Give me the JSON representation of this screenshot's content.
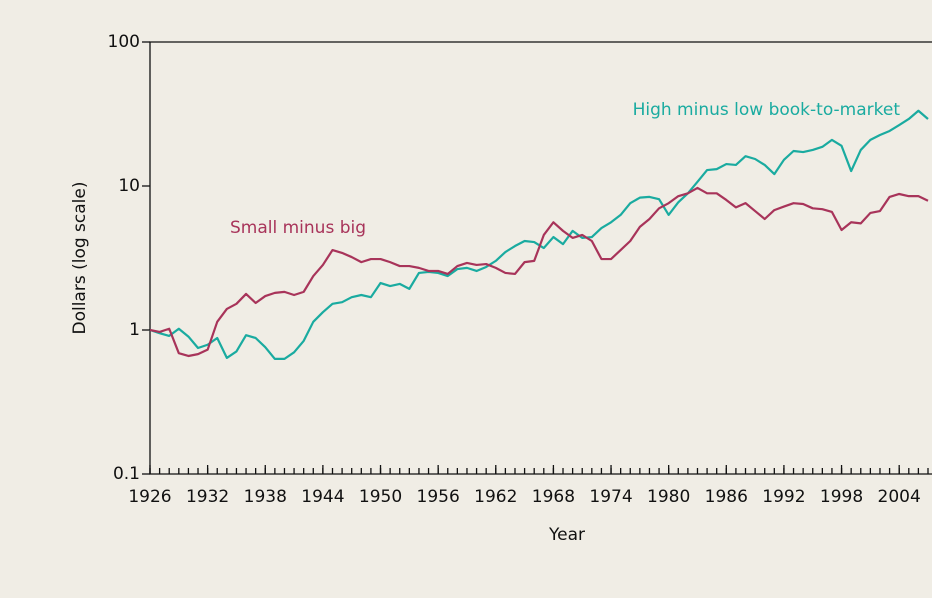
{
  "chart_data": {
    "type": "line",
    "xlabel": "Year",
    "ylabel": "Dollars (log scale)",
    "x": [
      1926,
      1927,
      1928,
      1929,
      1930,
      1931,
      1932,
      1933,
      1934,
      1935,
      1936,
      1937,
      1938,
      1939,
      1940,
      1941,
      1942,
      1943,
      1944,
      1945,
      1946,
      1947,
      1948,
      1949,
      1950,
      1951,
      1952,
      1953,
      1954,
      1955,
      1956,
      1957,
      1958,
      1959,
      1960,
      1961,
      1962,
      1963,
      1964,
      1965,
      1966,
      1967,
      1968,
      1969,
      1970,
      1971,
      1972,
      1973,
      1974,
      1975,
      1976,
      1977,
      1978,
      1979,
      1980,
      1981,
      1982,
      1983,
      1984,
      1985,
      1986,
      1987,
      1988,
      1989,
      1990,
      1991,
      1992,
      1993,
      1994,
      1995,
      1996,
      1997,
      1998,
      1999,
      2000,
      2001,
      2002,
      2003,
      2004,
      2005,
      2006,
      2007
    ],
    "series": [
      {
        "name": "High minus low book-to-market",
        "color": "#1aaba0",
        "values": [
          1.0,
          0.95,
          0.91,
          1.02,
          0.9,
          0.75,
          0.79,
          0.88,
          0.64,
          0.71,
          0.92,
          0.88,
          0.76,
          0.63,
          0.63,
          0.7,
          0.84,
          1.14,
          1.33,
          1.52,
          1.56,
          1.69,
          1.75,
          1.69,
          2.12,
          2.02,
          2.09,
          1.93,
          2.49,
          2.53,
          2.49,
          2.37,
          2.65,
          2.7,
          2.57,
          2.74,
          3.02,
          3.48,
          3.83,
          4.15,
          4.08,
          3.71,
          4.42,
          3.95,
          4.88,
          4.36,
          4.42,
          5.1,
          5.6,
          6.3,
          7.6,
          8.3,
          8.4,
          8.1,
          6.3,
          7.7,
          8.9,
          10.7,
          12.9,
          13.1,
          14.2,
          14.0,
          16.1,
          15.4,
          14.0,
          12.1,
          15.2,
          17.5,
          17.2,
          17.8,
          18.7,
          20.9,
          19.0,
          12.7,
          17.8,
          20.9,
          22.6,
          24.1,
          26.5,
          29.2,
          33.3,
          29.2
        ]
      },
      {
        "name": "Small minus big",
        "color": "#a8345a",
        "values": [
          1.0,
          0.97,
          1.02,
          0.69,
          0.66,
          0.68,
          0.73,
          1.14,
          1.4,
          1.52,
          1.78,
          1.54,
          1.72,
          1.81,
          1.84,
          1.75,
          1.84,
          2.37,
          2.83,
          3.59,
          3.43,
          3.21,
          2.96,
          3.11,
          3.11,
          2.96,
          2.78,
          2.78,
          2.7,
          2.57,
          2.57,
          2.45,
          2.78,
          2.92,
          2.83,
          2.87,
          2.7,
          2.49,
          2.45,
          2.96,
          3.02,
          4.57,
          5.6,
          4.88,
          4.36,
          4.57,
          4.15,
          3.11,
          3.11,
          3.59,
          4.15,
          5.2,
          5.9,
          7.0,
          7.6,
          8.5,
          8.9,
          9.7,
          8.9,
          8.9,
          8.0,
          7.1,
          7.6,
          6.7,
          5.9,
          6.8,
          7.2,
          7.6,
          7.5,
          7.0,
          6.9,
          6.6,
          4.95,
          5.6,
          5.5,
          6.5,
          6.7,
          8.4,
          8.8,
          8.5,
          8.5,
          7.9
        ]
      }
    ],
    "xlim": [
      1926,
      2007
    ],
    "xticks": [
      1926,
      1932,
      1938,
      1944,
      1950,
      1956,
      1962,
      1968,
      1974,
      1980,
      1986,
      1992,
      1998,
      2004
    ],
    "ylim": [
      0.1,
      100
    ],
    "yticks": [
      0.1,
      1,
      10,
      100
    ],
    "log_y": true
  }
}
